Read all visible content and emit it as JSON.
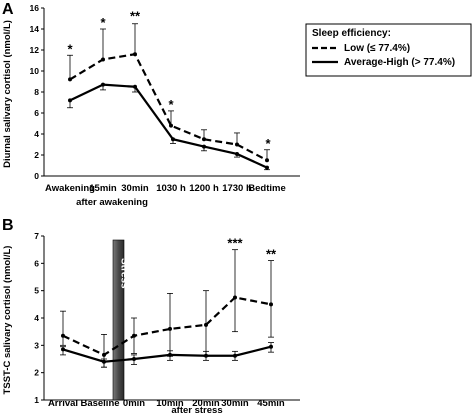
{
  "chart_data": [
    {
      "panel_label": "A",
      "type": "line",
      "ylabel": "Diurnal salivary cortisol (nmol/L)",
      "ylim": [
        0,
        16
      ],
      "yticks": [
        0,
        2,
        4,
        6,
        8,
        10,
        12,
        14,
        16
      ],
      "categories": [
        "Awakening",
        "15min",
        "30min",
        "1030 h",
        "1200 h",
        "1730 h",
        "Bedtime"
      ],
      "xlabel_sub": "after awakening",
      "legend": {
        "title": "Sleep efficiency:",
        "placement": "top-right",
        "entries": [
          "Low (≤ 77.4%)",
          "Average-High (> 77.4%)"
        ]
      },
      "series": [
        {
          "name": "Low (≤ 77.4%)",
          "style": "dashed",
          "values": [
            9.2,
            11.1,
            11.6,
            4.8,
            3.5,
            3.0,
            1.5
          ],
          "err_upper": [
            11.5,
            14.0,
            14.5,
            6.2,
            4.4,
            4.1,
            2.5
          ]
        },
        {
          "name": "Average-High (> 77.4%)",
          "style": "solid",
          "values": [
            7.2,
            8.7,
            8.5,
            3.5,
            2.8,
            2.1,
            0.8
          ],
          "err_lower": [
            6.5,
            8.2,
            8.0,
            3.1,
            2.4,
            1.8,
            0.6
          ]
        }
      ],
      "annotations": [
        "*",
        "*",
        "**",
        "*",
        "*"
      ]
    },
    {
      "panel_label": "B",
      "type": "line",
      "ylabel": "TSST-C salivary cortisol (nmol/L)",
      "ylim": [
        1,
        7
      ],
      "yticks": [
        1,
        2,
        3,
        4,
        5,
        6,
        7
      ],
      "categories": [
        "Arrival",
        "Baseline",
        "0min",
        "10min",
        "20min",
        "30min",
        "45min"
      ],
      "xlabel_sub": "after stress",
      "stress_label": "Stress",
      "series": [
        {
          "name": "Low (≤ 77.4%)",
          "style": "dashed",
          "values": [
            3.35,
            2.65,
            3.35,
            3.6,
            3.75,
            4.75,
            4.5
          ],
          "err_upper": [
            4.25,
            3.4,
            4.0,
            4.9,
            5.0,
            6.5,
            6.1
          ],
          "err_lower": [
            3.0,
            2.2,
            2.7,
            2.6,
            2.6,
            3.5,
            3.3
          ]
        },
        {
          "name": "Average-High (> 77.4%)",
          "style": "solid",
          "values": [
            2.85,
            2.4,
            2.5,
            2.65,
            2.62,
            2.62,
            2.95
          ],
          "err_upper": [
            2.95,
            2.5,
            2.65,
            2.8,
            2.78,
            2.78,
            3.1
          ],
          "err_lower": [
            2.65,
            2.2,
            2.3,
            2.45,
            2.45,
            2.45,
            2.75
          ]
        }
      ],
      "annotations": [
        "***",
        "**"
      ]
    }
  ]
}
